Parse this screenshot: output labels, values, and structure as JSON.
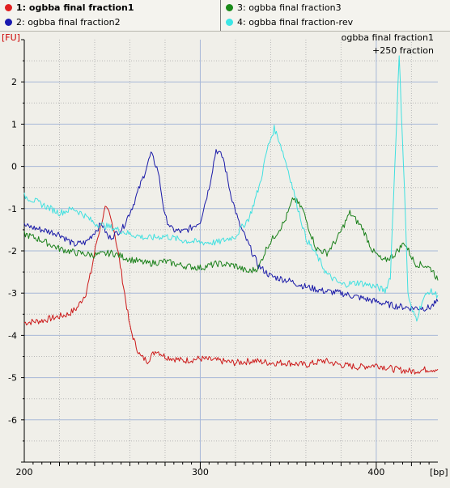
{
  "legend": {
    "items": [
      {
        "label": "1: ogbba final fraction1",
        "color": "#e02020",
        "bold": true
      },
      {
        "label": "2: ogbba final fraction2",
        "color": "#1a1ab0",
        "bold": false
      },
      {
        "label": "3: ogbba final fraction3",
        "color": "#1a8a1a",
        "bold": false
      },
      {
        "label": "4: ogbba final fraction-rev",
        "color": "#3ce6e6",
        "bold": false
      }
    ]
  },
  "colors": {
    "background": "#f0efe9",
    "grid_dotted": "#b8b8b8",
    "grid_solid": "#a8b8d8",
    "axis_label_y": "#cc0000"
  },
  "chart_data": {
    "type": "line",
    "title": "",
    "ylabel": "[FU]",
    "xlabel": "[bp]",
    "annotation": [
      "ogbba final fraction1",
      "+250 fraction"
    ],
    "xlim": [
      200,
      435
    ],
    "ylim": [
      -7,
      3
    ],
    "x_ticks": [
      200,
      300,
      400
    ],
    "y_ticks": [
      2,
      1,
      0,
      -1,
      -2,
      -3,
      -4,
      -5,
      -6
    ],
    "grid": true,
    "legend_position": "top",
    "series": [
      {
        "name": "1: ogbba final fraction1",
        "color": "#cc1a1a",
        "x": [
          200,
          210,
          220,
          225,
          230,
          235,
          238,
          241,
          244,
          246,
          248,
          251,
          254,
          257,
          260,
          263,
          266,
          270,
          275,
          280,
          285,
          290,
          300,
          310,
          320,
          330,
          340,
          350,
          360,
          370,
          380,
          390,
          400,
          410,
          420,
          430,
          435
        ],
        "y": [
          -3.7,
          -3.65,
          -3.55,
          -3.5,
          -3.35,
          -3.0,
          -2.5,
          -1.8,
          -1.3,
          -1.0,
          -1.1,
          -1.5,
          -2.2,
          -3.0,
          -3.8,
          -4.2,
          -4.5,
          -4.6,
          -4.35,
          -4.5,
          -4.55,
          -4.6,
          -4.55,
          -4.6,
          -4.65,
          -4.6,
          -4.65,
          -4.65,
          -4.7,
          -4.6,
          -4.7,
          -4.75,
          -4.7,
          -4.8,
          -4.85,
          -4.8,
          -4.8
        ]
      },
      {
        "name": "2: ogbba final fraction2",
        "color": "#1a1aa8",
        "x": [
          200,
          210,
          220,
          228,
          235,
          240,
          244,
          248,
          252,
          256,
          262,
          268,
          272,
          276,
          280,
          284,
          290,
          295,
          300,
          305,
          309,
          313,
          317,
          322,
          328,
          333,
          340,
          350,
          360,
          370,
          380,
          390,
          400,
          410,
          420,
          430,
          435
        ],
        "y": [
          -1.4,
          -1.5,
          -1.6,
          -1.85,
          -1.8,
          -1.55,
          -1.35,
          -1.7,
          -1.6,
          -1.45,
          -0.9,
          -0.2,
          0.3,
          -0.1,
          -1.2,
          -1.5,
          -1.55,
          -1.45,
          -1.3,
          -0.5,
          0.4,
          0.2,
          -0.6,
          -1.35,
          -1.9,
          -2.35,
          -2.6,
          -2.7,
          -2.85,
          -2.95,
          -3.0,
          -3.1,
          -3.2,
          -3.3,
          -3.35,
          -3.35,
          -3.2
        ]
      },
      {
        "name": "3: ogbba final fraction3",
        "color": "#1a801a",
        "x": [
          200,
          210,
          220,
          230,
          240,
          250,
          260,
          270,
          280,
          290,
          300,
          310,
          320,
          327,
          333,
          338,
          343,
          348,
          353,
          358,
          362,
          366,
          372,
          378,
          385,
          392,
          398,
          404,
          410,
          416,
          422,
          428,
          432,
          435
        ],
        "y": [
          -1.6,
          -1.75,
          -1.95,
          -2.05,
          -2.1,
          -2.05,
          -2.2,
          -2.3,
          -2.25,
          -2.35,
          -2.4,
          -2.3,
          -2.35,
          -2.5,
          -2.4,
          -1.9,
          -1.6,
          -1.3,
          -0.75,
          -1.0,
          -1.5,
          -1.95,
          -2.05,
          -1.7,
          -1.1,
          -1.45,
          -2.0,
          -2.25,
          -2.1,
          -1.8,
          -2.3,
          -2.35,
          -2.45,
          -2.7
        ]
      },
      {
        "name": "4: ogbba final fraction-rev",
        "color": "#40e0e0",
        "x": [
          200,
          210,
          220,
          228,
          234,
          240,
          250,
          260,
          270,
          280,
          290,
          300,
          310,
          320,
          328,
          334,
          338,
          342,
          345,
          350,
          355,
          360,
          366,
          372,
          380,
          390,
          400,
          405,
          408,
          411,
          413,
          416,
          418,
          420,
          423,
          426,
          430,
          435
        ],
        "y": [
          -0.7,
          -0.9,
          -1.1,
          -1.0,
          -1.15,
          -1.35,
          -1.45,
          -1.6,
          -1.7,
          -1.65,
          -1.75,
          -1.8,
          -1.8,
          -1.65,
          -1.2,
          -0.4,
          0.4,
          0.9,
          0.6,
          -0.1,
          -0.9,
          -1.7,
          -2.1,
          -2.55,
          -2.8,
          -2.75,
          -2.85,
          -2.95,
          -2.6,
          0.5,
          2.6,
          -0.5,
          -3.0,
          -3.4,
          -3.6,
          -3.2,
          -2.95,
          -3.05
        ]
      }
    ]
  }
}
